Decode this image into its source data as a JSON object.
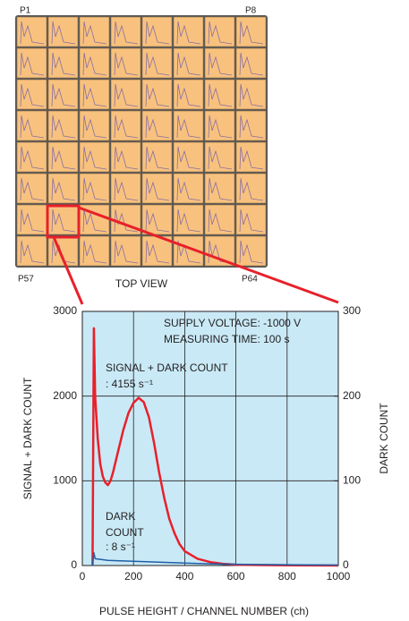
{
  "chart_data": {
    "type": "line",
    "top_view": {
      "title": "TOP VIEW",
      "corner_labels": [
        "P1",
        "P8",
        "P57",
        "P64"
      ]
    },
    "annotations": [
      "SUPPLY VOLTAGE: -1000 V",
      "MEASURING TIME: 100 s",
      "SIGNAL + DARK COUNT",
      ": 4155 s⁻¹",
      "DARK",
      "COUNT",
      ": 8 s⁻¹"
    ],
    "xlabel": "PULSE HEIGHT / CHANNEL NUMBER (ch)",
    "ylabel": "SIGNAL + DARK COUNT",
    "y2label": "DARK COUNT",
    "xlim": [
      0,
      1000
    ],
    "xticks": [
      0,
      200,
      400,
      600,
      800,
      1000
    ],
    "ylim": [
      0,
      3000
    ],
    "yticks": [
      0,
      1000,
      2000,
      3000
    ],
    "y2lim": [
      0,
      300
    ],
    "y2ticks": [
      0,
      100,
      200,
      300
    ],
    "grid": true,
    "series": [
      {
        "name": "SIGNAL + DARK COUNT",
        "color": "#e8202a",
        "x": [
          40,
          45,
          50,
          60,
          70,
          80,
          90,
          100,
          110,
          120,
          140,
          160,
          180,
          200,
          220,
          240,
          260,
          280,
          300,
          320,
          340,
          360,
          380,
          400,
          450,
          500,
          550,
          600,
          700,
          800,
          1000
        ],
        "values": [
          0,
          2800,
          2000,
          1500,
          1200,
          1050,
          980,
          950,
          1000,
          1100,
          1350,
          1600,
          1800,
          1920,
          1980,
          1930,
          1750,
          1450,
          1100,
          800,
          550,
          380,
          250,
          170,
          80,
          40,
          20,
          10,
          5,
          2,
          0
        ]
      },
      {
        "name": "DARK COUNT",
        "color": "#1f5fa8",
        "axis": "y2",
        "x": [
          40,
          45,
          50,
          100,
          200,
          300,
          400,
          500,
          600,
          800,
          1000
        ],
        "values": [
          0,
          15,
          8,
          6,
          5,
          4,
          3,
          2,
          1.5,
          1,
          0.5
        ]
      }
    ]
  }
}
